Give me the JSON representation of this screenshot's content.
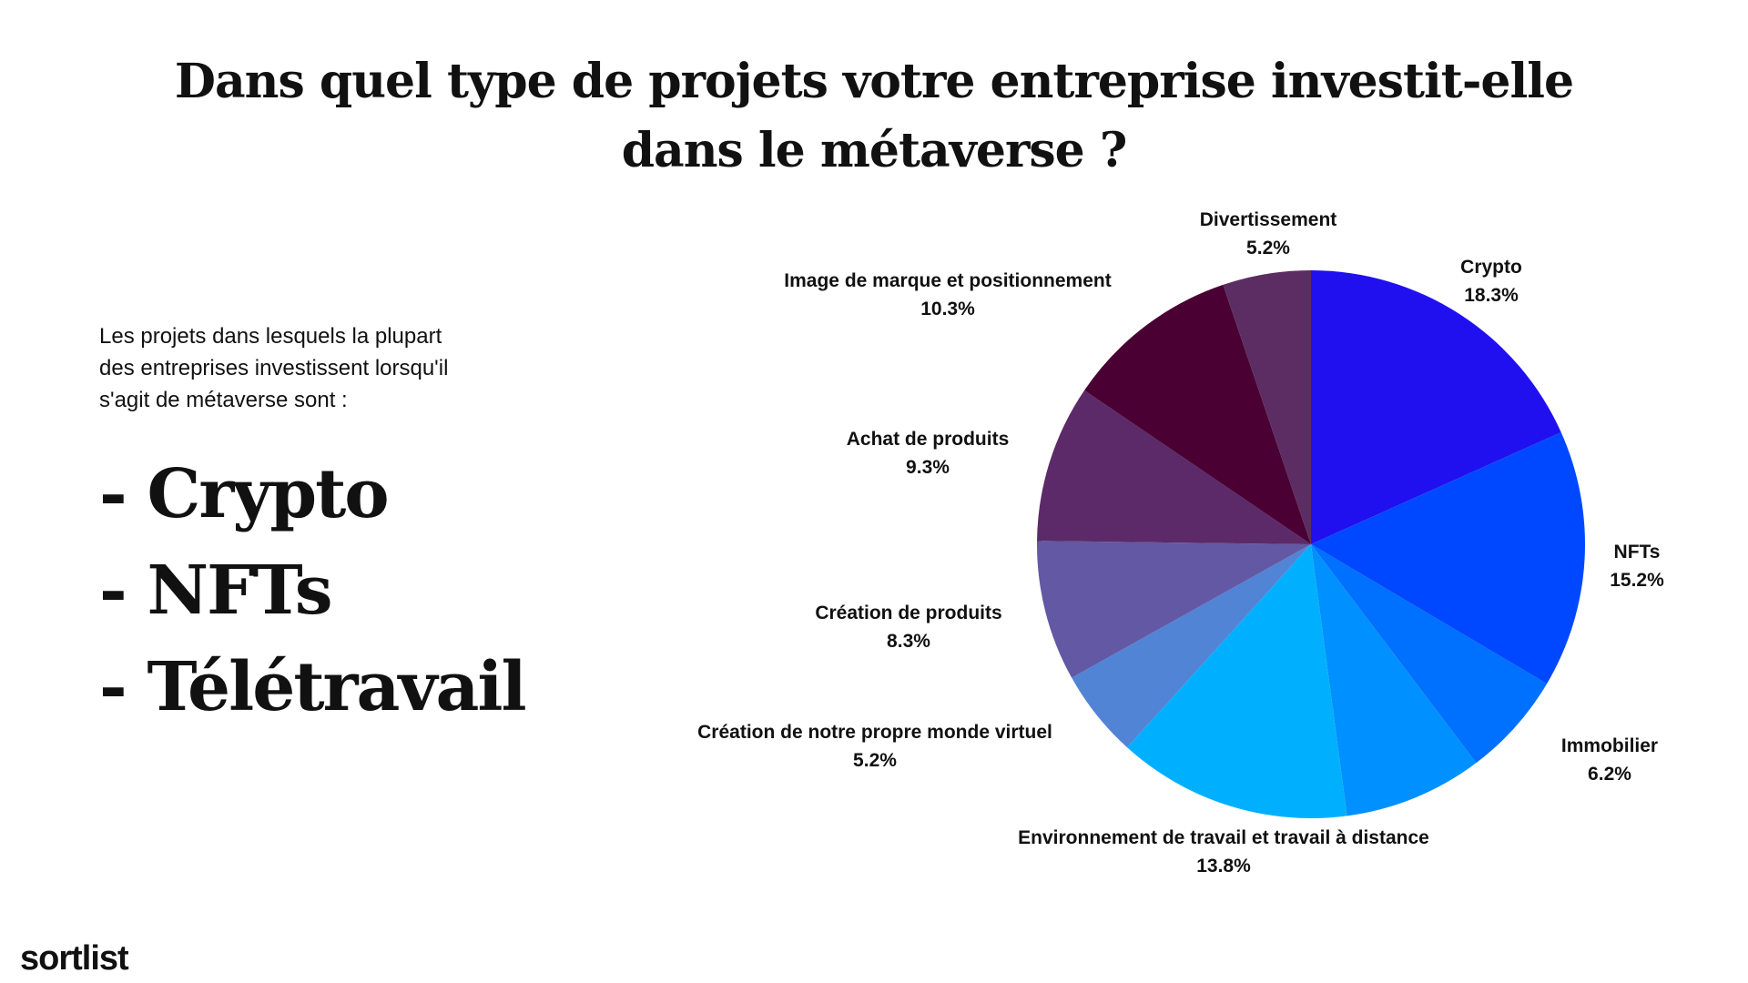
{
  "title": "Dans quel type de projets votre entreprise investit-elle dans le métaverse ?",
  "intro": "Les projets dans lesquels la plupart des entreprises investissent lorsqu'il s'agit de métaverse sont :",
  "highlights": [
    "- Crypto",
    "- NFTs",
    "- Télétravail"
  ],
  "logo": "sortlist",
  "chart_data": {
    "type": "pie",
    "title": "Dans quel type de projets votre entreprise investit-elle dans le métaverse ?",
    "start": "top, clockwise",
    "slices": [
      {
        "label": "Crypto",
        "value": 18.3,
        "value_label": "18.3%",
        "color": "#2010F0"
      },
      {
        "label": "NFTs",
        "value": 15.2,
        "value_label": "15.2%",
        "color": "#0048FF"
      },
      {
        "label": "Immobilier",
        "value": 6.2,
        "value_label": "6.2%",
        "color": "#0070FF"
      },
      {
        "label": "",
        "value": 8.2,
        "value_label": "",
        "color": "#0090FF"
      },
      {
        "label": "Environnement de travail et travail à distance",
        "value": 13.8,
        "value_label": "13.8%",
        "color": "#00B0FF"
      },
      {
        "label": "Création de notre propre monde virtuel",
        "value": 5.2,
        "value_label": "5.2%",
        "color": "#5284D6"
      },
      {
        "label": "Création de produits",
        "value": 8.3,
        "value_label": "8.3%",
        "color": "#6358A3"
      },
      {
        "label": "Achat de produits",
        "value": 9.3,
        "value_label": "9.3%",
        "color": "#5C2A68"
      },
      {
        "label": "Image de marque et positionnement",
        "value": 10.3,
        "value_label": "10.3%",
        "color": "#4A0033"
      },
      {
        "label": "Divertissement",
        "value": 5.2,
        "value_label": "5.2%",
        "color": "#5C2D62"
      }
    ]
  }
}
